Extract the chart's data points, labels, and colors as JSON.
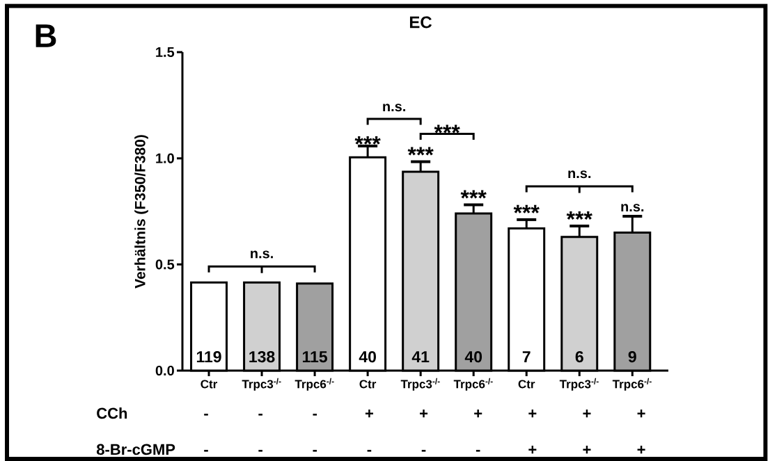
{
  "chart_data": {
    "type": "bar",
    "title": "EC",
    "ylabel": "Verhältnis (F350/F380)",
    "categories": [
      "Ctr",
      "Trpc3$^{-/-}$",
      "Trpc6$^{-/-}$",
      "Ctr",
      "Trpc3$^{-/-}$",
      "Trpc6$^{-/-}$",
      "Ctr",
      "Trpc3$^{-/-}$",
      "Trpc6$^{-/-}$"
    ],
    "values": [
      0.415,
      0.415,
      0.41,
      1.005,
      0.937,
      0.74,
      0.67,
      0.63,
      0.65
    ],
    "errors": [
      null,
      null,
      null,
      0.053,
      0.047,
      0.041,
      0.041,
      0.051,
      0.077
    ],
    "colors": [
      "#ffffff",
      "#d0d0d0",
      "#a0a0a0",
      "#ffffff",
      "#d0d0d0",
      "#a0a0a0",
      "#ffffff",
      "#d0d0d0",
      "#a0a0a0"
    ],
    "ylim": [
      0,
      1.5
    ],
    "yticks": [
      {
        "value": 0,
        "label": "0.0"
      },
      0.5,
      {
        "value": 1,
        "label": "1.0"
      },
      1.5
    ],
    "annotations": [
      "B",
      "n.s.",
      "***",
      "n.s.",
      "***",
      "***",
      "***",
      "***",
      "***",
      "n.s.",
      "n.s.",
      "119",
      "138",
      "115",
      "40",
      "41",
      "40",
      "7",
      "6",
      "9",
      "CCh",
      "-",
      "-",
      "-",
      "+",
      "+",
      "+",
      "+",
      "+",
      "+",
      "8-Br-cGMP",
      "-",
      "-",
      "-",
      "-",
      "-",
      "-",
      "+",
      "+",
      "+"
    ]
  }
}
